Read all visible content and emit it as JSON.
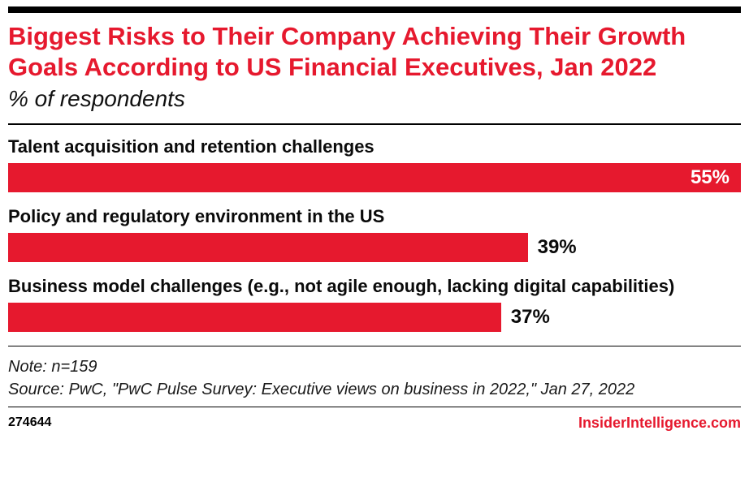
{
  "colors": {
    "accent": "#e6192e",
    "text": "#0a0a0a"
  },
  "chart_data": {
    "type": "bar",
    "orientation": "horizontal",
    "title": "Biggest Risks to Their Company Achieving Their Growth Goals According to US Financial Executives, Jan 2022",
    "subtitle": "% of respondents",
    "categories": [
      "Talent acquisition and retention challenges",
      "Policy and regulatory environment in the US",
      "Business model challenges (e.g., not agile enough, lacking digital capabilities)"
    ],
    "values": [
      55,
      39,
      37
    ],
    "value_labels": [
      "55%",
      "39%",
      "37%"
    ],
    "xlim": [
      0,
      55
    ],
    "bar_color": "#e6192e",
    "grid": false,
    "legend": false,
    "value_label_position": [
      "inside-right",
      "outside-right",
      "outside-right"
    ]
  },
  "footer": {
    "note": "Note: n=159",
    "source": "Source: PwC, \"PwC Pulse Survey: Executive views on business in 2022,\" Jan 27, 2022",
    "chart_id": "274644",
    "brand": "InsiderIntelligence.com"
  }
}
